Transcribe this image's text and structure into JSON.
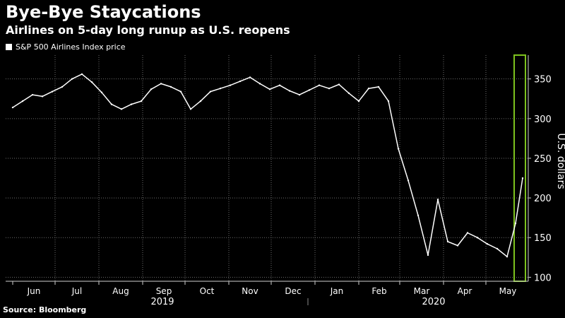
{
  "header": {
    "title": "Bye-Bye Staycations",
    "subtitle": "Airlines on 5-day long runup as U.S. reopens"
  },
  "legend": {
    "label": "S&P 500 Airlines Index price"
  },
  "source": "Source: Bloomberg",
  "colors": {
    "background": "#000000",
    "line": "#ffffff",
    "grid": "#6b6b6b",
    "highlight": "#7dc21e"
  },
  "chart_data": {
    "type": "line",
    "title": "Bye-Bye Staycations",
    "subtitle": "Airlines on 5-day long runup as U.S. reopens",
    "ylabel": "U.S. dollars",
    "ylim": [
      95,
      380
    ],
    "yticks": [
      100,
      150,
      200,
      250,
      300,
      350
    ],
    "xticks": [
      "Jun",
      "Jul",
      "Aug",
      "Sep",
      "Oct",
      "Nov",
      "Dec",
      "Jan",
      "Feb",
      "Mar",
      "Apr",
      "May"
    ],
    "year_labels": [
      "2019",
      "2020"
    ],
    "grid": true,
    "highlight_region": {
      "from": "2020-05-21",
      "to": "2020-05-29"
    },
    "series": [
      {
        "name": "S&P 500 Airlines Index price",
        "x": [
          "2019-06-01",
          "2019-06-08",
          "2019-06-15",
          "2019-06-22",
          "2019-06-29",
          "2019-07-06",
          "2019-07-13",
          "2019-07-20",
          "2019-07-27",
          "2019-08-03",
          "2019-08-10",
          "2019-08-17",
          "2019-08-24",
          "2019-08-31",
          "2019-09-07",
          "2019-09-14",
          "2019-09-21",
          "2019-09-28",
          "2019-10-05",
          "2019-10-12",
          "2019-10-19",
          "2019-10-26",
          "2019-11-02",
          "2019-11-09",
          "2019-11-16",
          "2019-11-23",
          "2019-11-30",
          "2019-12-07",
          "2019-12-14",
          "2019-12-21",
          "2019-12-28",
          "2020-01-04",
          "2020-01-11",
          "2020-01-18",
          "2020-01-25",
          "2020-02-01",
          "2020-02-08",
          "2020-02-15",
          "2020-02-22",
          "2020-02-29",
          "2020-03-07",
          "2020-03-14",
          "2020-03-21",
          "2020-03-28",
          "2020-04-04",
          "2020-04-11",
          "2020-04-18",
          "2020-04-25",
          "2020-05-02",
          "2020-05-09",
          "2020-05-16",
          "2020-05-22",
          "2020-05-27"
        ],
        "y": [
          314,
          322,
          330,
          328,
          334,
          340,
          350,
          356,
          346,
          333,
          318,
          312,
          318,
          322,
          337,
          344,
          340,
          334,
          312,
          322,
          334,
          338,
          342,
          347,
          352,
          344,
          337,
          342,
          335,
          330,
          336,
          342,
          338,
          343,
          332,
          322,
          338,
          340,
          322,
          262,
          222,
          178,
          128,
          198,
          145,
          140,
          156,
          150,
          142,
          136,
          126,
          168,
          225
        ]
      }
    ]
  }
}
